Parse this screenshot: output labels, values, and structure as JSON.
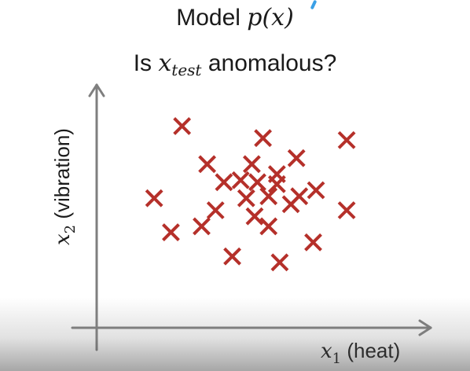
{
  "title": {
    "prefix": "Model ",
    "func": "p(x)",
    "question_prefix": "Is ",
    "question_var": "x",
    "question_sub": "test",
    "question_suffix": " anomalous?"
  },
  "colors": {
    "marker": "#b5302a",
    "axis": "#7f7f7f",
    "text": "#1a1a1a",
    "accent": "#3aa0e6"
  },
  "chart_data": {
    "type": "scatter",
    "marker": "x",
    "xlabel": {
      "var": "x",
      "sub": "1",
      "text": " (heat)"
    },
    "ylabel": {
      "var": "x",
      "sub": "2",
      "text": " (vibration)"
    },
    "ticks_shown": false,
    "grid": false,
    "legend": "none",
    "xlim": [
      0,
      10
    ],
    "ylim": [
      0,
      10
    ],
    "points": [
      {
        "x": 2.3,
        "y": 9.2
      },
      {
        "x": 5.2,
        "y": 8.6
      },
      {
        "x": 8.2,
        "y": 8.5
      },
      {
        "x": 6.4,
        "y": 7.6
      },
      {
        "x": 3.2,
        "y": 7.3
      },
      {
        "x": 4.8,
        "y": 7.3
      },
      {
        "x": 5.7,
        "y": 6.8
      },
      {
        "x": 3.8,
        "y": 6.4
      },
      {
        "x": 4.4,
        "y": 6.5
      },
      {
        "x": 5.0,
        "y": 6.4
      },
      {
        "x": 5.7,
        "y": 6.3
      },
      {
        "x": 1.3,
        "y": 5.6
      },
      {
        "x": 3.5,
        "y": 5.0
      },
      {
        "x": 4.6,
        "y": 5.6
      },
      {
        "x": 5.4,
        "y": 5.7
      },
      {
        "x": 6.2,
        "y": 5.3
      },
      {
        "x": 6.5,
        "y": 5.7
      },
      {
        "x": 7.1,
        "y": 6.0
      },
      {
        "x": 8.2,
        "y": 5.0
      },
      {
        "x": 4.9,
        "y": 4.7
      },
      {
        "x": 5.4,
        "y": 4.2
      },
      {
        "x": 3.0,
        "y": 4.2
      },
      {
        "x": 1.9,
        "y": 3.9
      },
      {
        "x": 7.0,
        "y": 3.4
      },
      {
        "x": 4.1,
        "y": 2.7
      },
      {
        "x": 5.8,
        "y": 2.4
      }
    ]
  }
}
